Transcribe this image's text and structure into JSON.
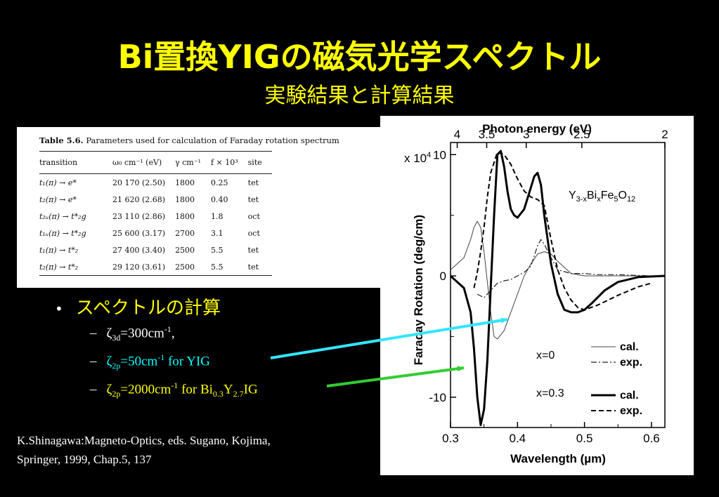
{
  "title": "Bi置換YIGの磁気光学スペクトル",
  "subtitle": "実験結果と計算結果",
  "table": {
    "caption_bold": "Table 5.6.",
    "caption_rest": "Parameters used for calculation of Faraday rotation spectrum",
    "headers": [
      "transition",
      "ω₀ cm⁻¹ (eV)",
      "γ cm⁻¹",
      "f × 10³",
      "site"
    ],
    "rows": [
      [
        "t₁(π) → e*",
        "20 170 (2.50)",
        "1800",
        "0.25",
        "tet"
      ],
      [
        "t₂(π) → e*",
        "21 620 (2.68)",
        "1800",
        "0.40",
        "tet"
      ],
      [
        "t₂ᵤ(π) → t*₂g",
        "23 110 (2.86)",
        "1800",
        "1.8",
        "oct"
      ],
      [
        "t₁ᵤ(π) → t*₂g",
        "25 600 (3.17)",
        "2700",
        "3.1",
        "oct"
      ],
      [
        "t₁(π) → t*₂",
        "27 400 (3.40)",
        "2500",
        "5.5",
        "tet"
      ],
      [
        "t₂(π) → t*₂",
        "29 120 (3.61)",
        "2500",
        "5.5",
        "tet"
      ]
    ]
  },
  "bullets": {
    "head": "スペクトルの計算",
    "dot": "•",
    "dash": "–",
    "items": [
      {
        "sym": "ζ",
        "sub": "3d",
        "eq": "=300cm",
        "sup": "-1",
        "tail": ","
      },
      {
        "sym": "ζ",
        "sub": "2p",
        "eq": "=50cm",
        "sup": "-1",
        "tail": " for YIG"
      },
      {
        "sym": "ζ",
        "sub": "2p",
        "eq": "=2000cm",
        "sup": "-1",
        "tail": " for Bi",
        "sub2": "0.3",
        "mid": "Y",
        "sub3": "2.7",
        "end": "IG"
      }
    ],
    "colors": {
      "item1": "#ffffff",
      "item2": "#00ffff",
      "item3": "#ffff00"
    }
  },
  "citation": {
    "line1": "K.Shinagawa:Magneto-Optics, eds. Sugano, Kojima,",
    "line2": "Springer, 1999, Chap.5, 137"
  },
  "arrow_colors": {
    "cyan": "#33e5ff",
    "green": "#33cc33"
  },
  "chart_data": {
    "type": "line",
    "title": "",
    "xlabel": "Wavelength (µm)",
    "ylabel": "Faraday Rotation (deg/cm)",
    "top_xlabel": "Photon energy (eV)",
    "y_scale_label": "x 10",
    "y_scale_exp": "4",
    "xlim": [
      0.3,
      0.62
    ],
    "ylim": [
      -12.5,
      11
    ],
    "x_ticks": [
      "0.3",
      "0.4",
      "0.5",
      "0.6"
    ],
    "y_ticks": [
      "10",
      "0",
      "-10"
    ],
    "top_ticks": [
      {
        "label": "4",
        "wavelength": 0.31
      },
      {
        "label": "3.5",
        "wavelength": 0.354
      },
      {
        "label": "3",
        "wavelength": 0.413
      },
      {
        "label": "2.5",
        "wavelength": 0.496
      },
      {
        "label": "2",
        "wavelength": 0.62
      }
    ],
    "formula": {
      "a": "Y",
      "a_sub": "3-x",
      "b": "Bi",
      "b_sub": "x",
      "c": "Fe",
      "c_sub": "5",
      "d": "O",
      "d_sub": "12"
    },
    "legend": [
      {
        "group": "x=0",
        "name": "cal.",
        "style": "thin-solid"
      },
      {
        "group": "",
        "name": "exp.",
        "style": "thin-dashdot"
      },
      {
        "group": "x=0.3",
        "name": "cal.",
        "style": "thick-solid"
      },
      {
        "group": "",
        "name": "exp.",
        "style": "thick-dash"
      }
    ],
    "series": [
      {
        "x": [
          0.3,
          0.31,
          0.32,
          0.33,
          0.335,
          0.34,
          0.345,
          0.35,
          0.355,
          0.36,
          0.365,
          0.37,
          0.38,
          0.39,
          0.4,
          0.41,
          0.42,
          0.43,
          0.44,
          0.45,
          0.46,
          0.47,
          0.48,
          0.5,
          0.52,
          0.55,
          0.58,
          0.6,
          0.62
        ],
        "y": [
          0.5,
          1,
          1.5,
          3,
          4,
          4.5,
          4,
          2,
          -0.5,
          -3,
          -5,
          -5.2,
          -4.5,
          -3,
          -1.5,
          0,
          1,
          1.8,
          2,
          1.8,
          1.2,
          0.7,
          0.2,
          0,
          0,
          0,
          0,
          0,
          0
        ]
      },
      {
        "x": [
          0.34,
          0.35,
          0.36,
          0.37,
          0.38,
          0.39,
          0.4,
          0.41,
          0.42,
          0.43,
          0.435,
          0.44,
          0.45,
          0.46,
          0.48,
          0.5,
          0.52,
          0.55,
          0.6,
          0.62
        ],
        "y": [
          -1.5,
          -1.8,
          -1.2,
          -0.6,
          -0.4,
          -0.3,
          0,
          0.3,
          0.8,
          2.5,
          3,
          2.6,
          1.5,
          0.5,
          0.2,
          0.2,
          0.1,
          0.1,
          0,
          0
        ]
      },
      {
        "x": [
          0.3,
          0.31,
          0.32,
          0.33,
          0.335,
          0.34,
          0.345,
          0.35,
          0.355,
          0.36,
          0.365,
          0.37,
          0.375,
          0.38,
          0.385,
          0.39,
          0.395,
          0.4,
          0.41,
          0.42,
          0.425,
          0.43,
          0.435,
          0.44,
          0.45,
          0.46,
          0.47,
          0.48,
          0.49,
          0.5,
          0.51,
          0.53,
          0.55,
          0.58,
          0.62
        ],
        "y": [
          0,
          -0.5,
          -1,
          -3,
          -6,
          -10,
          -12.3,
          -11,
          -7,
          -1,
          5,
          10,
          10.3,
          9,
          7,
          5.5,
          5,
          4.8,
          5.5,
          7.3,
          8.2,
          8.5,
          7.5,
          5,
          1,
          -1.5,
          -2.8,
          -3,
          -3,
          -2.8,
          -2.3,
          -1.2,
          -0.5,
          -0.1,
          0
        ]
      },
      {
        "x": [
          0.335,
          0.34,
          0.345,
          0.35,
          0.355,
          0.36,
          0.37,
          0.38,
          0.39,
          0.4,
          0.41,
          0.42,
          0.43,
          0.44,
          0.45,
          0.46,
          0.47,
          0.48,
          0.49,
          0.5,
          0.52,
          0.55,
          0.58,
          0.6
        ],
        "y": [
          -1,
          0.3,
          2,
          4,
          6.5,
          8.5,
          10.2,
          10,
          9.2,
          8,
          7,
          6.5,
          6.3,
          5.8,
          3,
          0.5,
          -1,
          -2,
          -2.6,
          -2.8,
          -2.4,
          -1.6,
          -0.9,
          -0.6
        ]
      }
    ],
    "grid": false
  }
}
